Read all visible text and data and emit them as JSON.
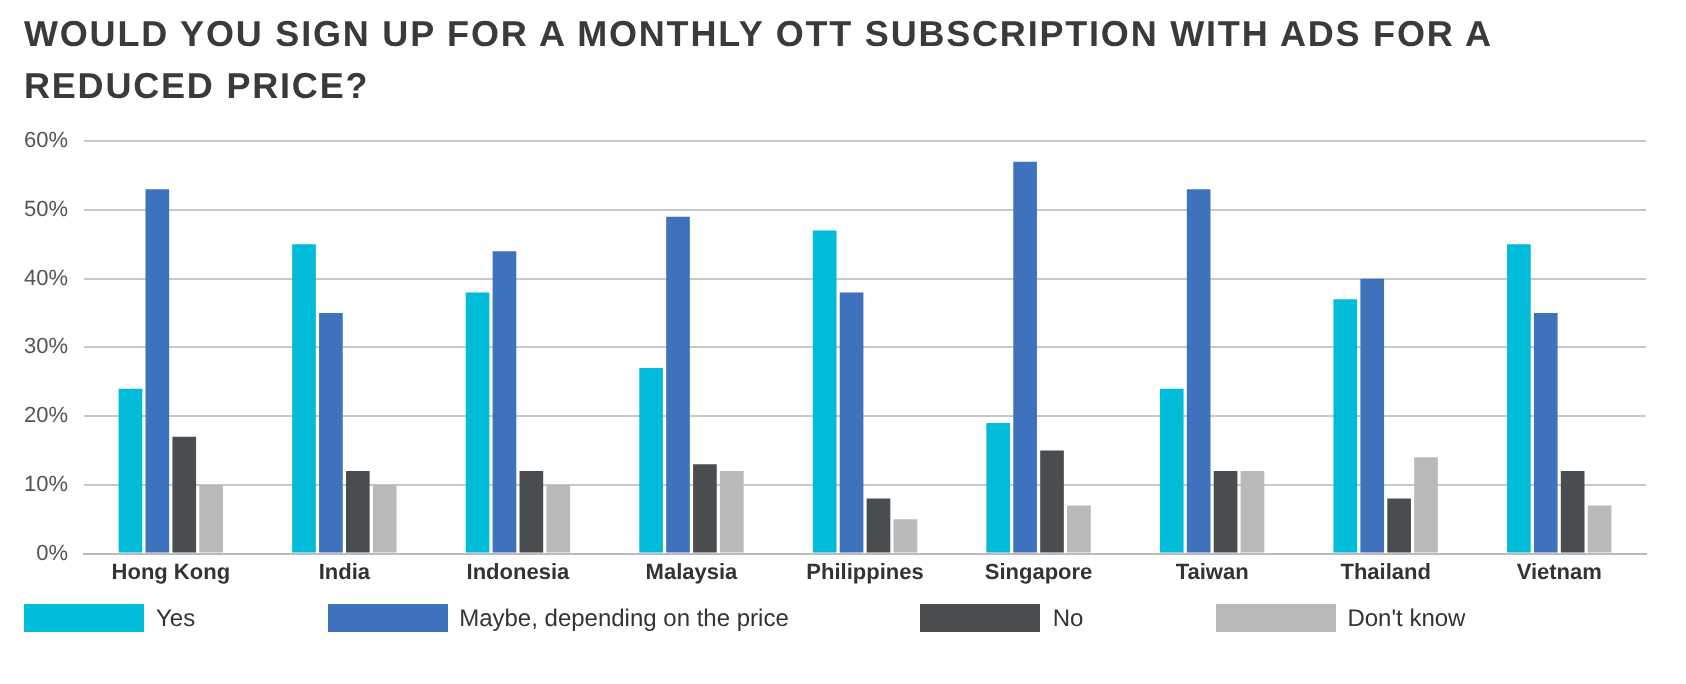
{
  "chart_data": {
    "type": "bar",
    "title": "WOULD YOU SIGN UP FOR A MONTHLY OTT SUBSCRIPTION WITH ADS FOR A REDUCED PRICE?",
    "categories": [
      "Hong Kong",
      "India",
      "Indonesia",
      "Malaysia",
      "Philippines",
      "Singapore",
      "Taiwan",
      "Thailand",
      "Vietnam"
    ],
    "series": [
      {
        "name": "Yes",
        "color": "#00bcd9",
        "values": [
          24,
          45,
          38,
          27,
          47,
          19,
          24,
          37,
          45
        ]
      },
      {
        "name": "Maybe, depending on the price",
        "color": "#3f72bc",
        "values": [
          53,
          35,
          44,
          49,
          38,
          57,
          53,
          40,
          35
        ]
      },
      {
        "name": "No",
        "color": "#4a4d50",
        "values": [
          17,
          12,
          12,
          13,
          8,
          15,
          12,
          8,
          12
        ]
      },
      {
        "name": "Don't know",
        "color": "#b9b9b9",
        "values": [
          10,
          10,
          10,
          12,
          5,
          7,
          12,
          14,
          7
        ]
      }
    ],
    "ylim": [
      0,
      60
    ],
    "yticks": [
      {
        "value": 0,
        "label": "0%"
      },
      {
        "value": 10,
        "label": "10%"
      },
      {
        "value": 20,
        "label": "20%"
      },
      {
        "value": 30,
        "label": "30%"
      },
      {
        "value": 40,
        "label": "40%"
      },
      {
        "value": 50,
        "label": "50%"
      },
      {
        "value": 60,
        "label": "60%"
      }
    ],
    "grid": "y",
    "legend": "bottom"
  }
}
